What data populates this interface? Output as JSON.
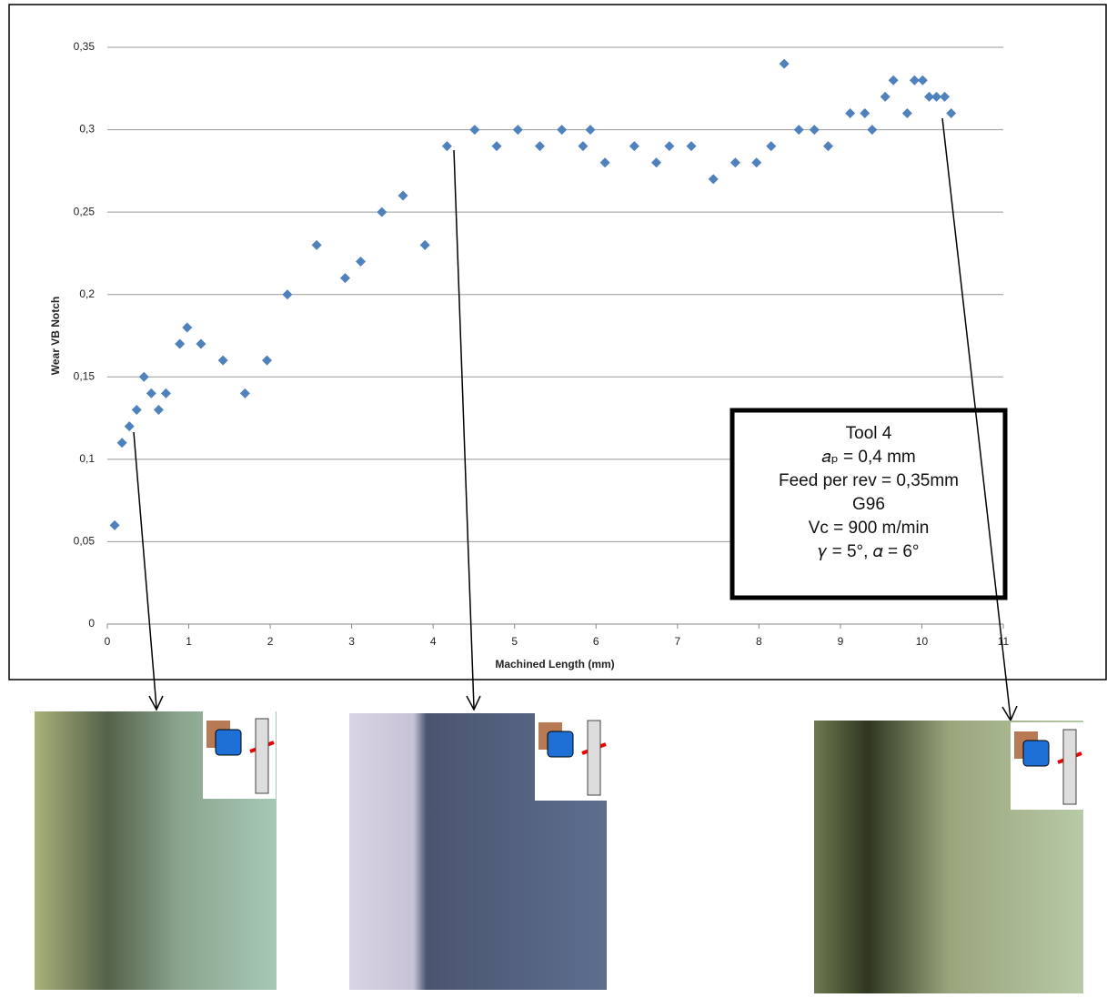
{
  "chart_data": {
    "type": "scatter",
    "x_label": "Machined Length (mm)",
    "y_label": "Wear VB Notch",
    "x": [
      0.09,
      0.18,
      0.27,
      0.36,
      0.45,
      0.54,
      0.63,
      0.72,
      0.89,
      0.98,
      1.15,
      1.42,
      1.69,
      1.96,
      2.21,
      2.57,
      2.92,
      3.11,
      3.37,
      3.63,
      3.9,
      4.17,
      4.51,
      4.78,
      5.04,
      5.31,
      5.58,
      5.84,
      5.93,
      6.11,
      6.47,
      6.74,
      6.9,
      7.17,
      7.44,
      7.71,
      7.97,
      8.15,
      8.31,
      8.49,
      8.68,
      8.85,
      9.12,
      9.3,
      9.39,
      9.55,
      9.65,
      9.82,
      9.91,
      10.01,
      10.09,
      10.18,
      10.28,
      10.36
    ],
    "values": [
      0.06,
      0.11,
      0.12,
      0.13,
      0.15,
      0.14,
      0.13,
      0.14,
      0.17,
      0.18,
      0.17,
      0.16,
      0.14,
      0.16,
      0.2,
      0.23,
      0.21,
      0.22,
      0.25,
      0.26,
      0.23,
      0.29,
      0.3,
      0.29,
      0.3,
      0.29,
      0.3,
      0.29,
      0.3,
      0.28,
      0.29,
      0.28,
      0.29,
      0.29,
      0.27,
      0.28,
      0.28,
      0.29,
      0.34,
      0.3,
      0.3,
      0.29,
      0.31,
      0.31,
      0.3,
      0.32,
      0.33,
      0.31,
      0.33,
      0.33,
      0.32,
      0.32,
      0.32,
      0.31
    ],
    "color": "#4f81bd",
    "xlim": [
      0,
      11
    ],
    "xticks": [
      0,
      1,
      2,
      3,
      4,
      5,
      6,
      7,
      8,
      9,
      10,
      11
    ],
    "ylim": [
      0,
      0.35
    ],
    "yticks": [
      0,
      {
        "value": 0.05,
        "label": "0,05"
      },
      {
        "value": 0.1,
        "label": "0,1"
      },
      {
        "value": 0.15,
        "label": "0,15"
      },
      {
        "value": 0.2,
        "label": "0,2"
      },
      {
        "value": 0.25,
        "label": "0,25"
      },
      {
        "value": 0.3,
        "label": "0,3"
      },
      {
        "value": 0.35,
        "label": "0,35"
      }
    ],
    "grid": true,
    "annotation": [
      "Tool 4",
      "𝑎ₚ = 0,4 mm",
      "Feed per rev = 0,35mm",
      "G96",
      "Vc = 900 m/min",
      "𝛾 = 5°, 𝛼 = 6°"
    ]
  }
}
